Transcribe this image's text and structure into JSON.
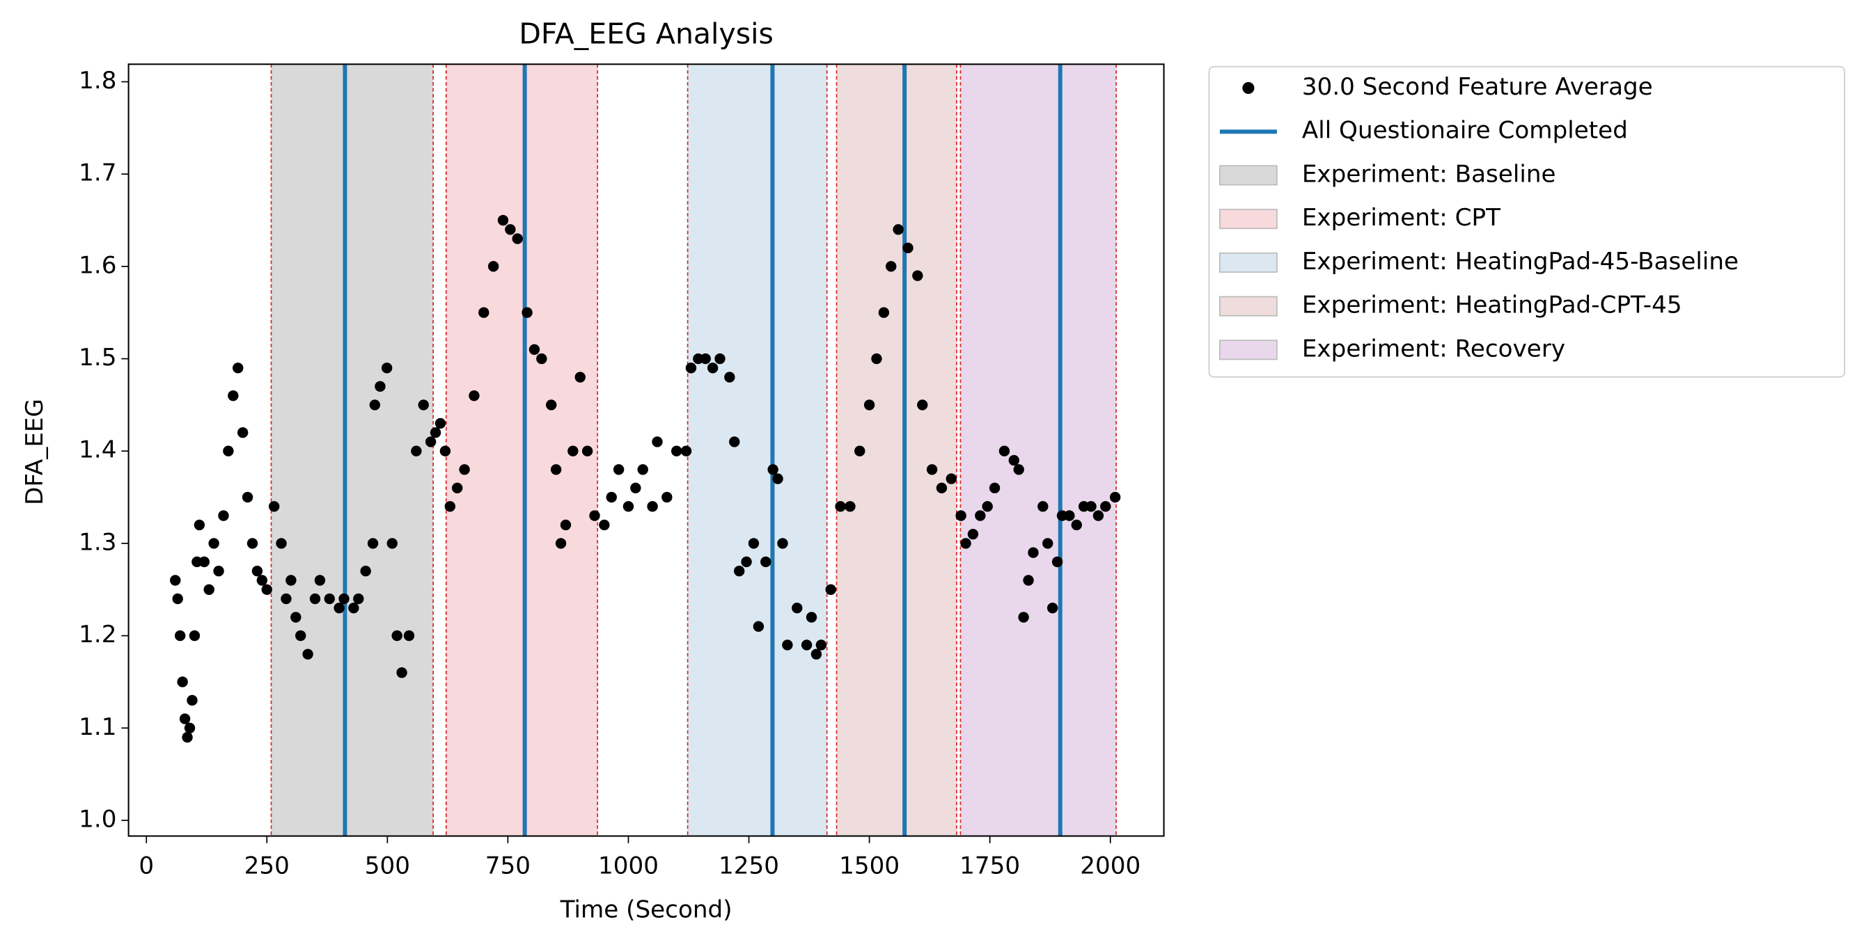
{
  "chart_data": {
    "type": "scatter",
    "title": "DFA_EEG Analysis",
    "xlabel": "Time (Second)",
    "ylabel": "DFA_EEG",
    "xlim": [
      -37,
      2111
    ],
    "ylim": [
      0.983,
      1.819
    ],
    "xticks": [
      0,
      250,
      500,
      750,
      1000,
      1250,
      1500,
      1750,
      2000
    ],
    "yticks": [
      {
        "value": 1,
        "label": "1.0"
      },
      1.1,
      1.2,
      1.3,
      1.4,
      1.5,
      1.6,
      1.7,
      1.8
    ],
    "series": [
      {
        "name": "30.0 Second Feature Average",
        "color": "#000000",
        "x": [
          60,
          65,
          70,
          75,
          80,
          85,
          90,
          95,
          100,
          105,
          110,
          120,
          130,
          140,
          150,
          160,
          170,
          180,
          190,
          200,
          210,
          220,
          230,
          240,
          250,
          265,
          280,
          290,
          300,
          310,
          320,
          335,
          350,
          360,
          380,
          400,
          410,
          430,
          440,
          455,
          470,
          474,
          485,
          499,
          510,
          520,
          530,
          545,
          560,
          575,
          590,
          600,
          610,
          620,
          630,
          645,
          660,
          680,
          700,
          720,
          740,
          755,
          770,
          790,
          805,
          820,
          840,
          850,
          860,
          870,
          885,
          900,
          915,
          930,
          950,
          965,
          980,
          1000,
          1015,
          1030,
          1050,
          1060,
          1080,
          1100,
          1120,
          1130,
          1145,
          1160,
          1175,
          1190,
          1210,
          1220,
          1230,
          1245,
          1260,
          1270,
          1285,
          1300,
          1310,
          1320,
          1330,
          1350,
          1370,
          1380,
          1390,
          1400,
          1420,
          1440,
          1460,
          1480,
          1500,
          1515,
          1530,
          1545,
          1560,
          1580,
          1600,
          1610,
          1630,
          1650,
          1670,
          1690,
          1700,
          1715,
          1730,
          1745,
          1760,
          1780,
          1800,
          1810,
          1820,
          1830,
          1840,
          1860,
          1870,
          1880,
          1890,
          1900,
          1915,
          1930,
          1945,
          1960,
          1975,
          1990,
          2010
        ],
        "values": [
          1.26,
          1.24,
          1.2,
          1.15,
          1.11,
          1.09,
          1.1,
          1.13,
          1.2,
          1.28,
          1.32,
          1.28,
          1.25,
          1.3,
          1.27,
          1.33,
          1.4,
          1.46,
          1.49,
          1.42,
          1.35,
          1.3,
          1.27,
          1.26,
          1.25,
          1.34,
          1.3,
          1.24,
          1.26,
          1.22,
          1.2,
          1.18,
          1.24,
          1.26,
          1.24,
          1.23,
          1.24,
          1.23,
          1.24,
          1.27,
          1.3,
          1.45,
          1.47,
          1.49,
          1.3,
          1.2,
          1.16,
          1.2,
          1.4,
          1.45,
          1.41,
          1.42,
          1.43,
          1.4,
          1.34,
          1.36,
          1.38,
          1.46,
          1.55,
          1.6,
          1.65,
          1.64,
          1.63,
          1.55,
          1.51,
          1.5,
          1.45,
          1.38,
          1.3,
          1.32,
          1.4,
          1.48,
          1.4,
          1.33,
          1.32,
          1.35,
          1.38,
          1.34,
          1.36,
          1.38,
          1.34,
          1.41,
          1.35,
          1.4,
          1.4,
          1.49,
          1.5,
          1.5,
          1.49,
          1.5,
          1.48,
          1.41,
          1.27,
          1.28,
          1.3,
          1.21,
          1.28,
          1.38,
          1.37,
          1.3,
          1.19,
          1.23,
          1.19,
          1.22,
          1.18,
          1.19,
          1.25,
          1.34,
          1.34,
          1.4,
          1.45,
          1.5,
          1.55,
          1.6,
          1.64,
          1.62,
          1.59,
          1.45,
          1.38,
          1.36,
          1.37,
          1.33,
          1.3,
          1.31,
          1.33,
          1.34,
          1.36,
          1.4,
          1.39,
          1.38,
          1.22,
          1.26,
          1.29,
          1.34,
          1.3,
          1.23,
          1.28,
          1.33,
          1.33,
          1.32,
          1.34,
          1.34,
          1.33,
          1.34,
          1.35
        ]
      }
    ],
    "vlines": {
      "name": "All Questionaire Completed",
      "color": "#1f77b4",
      "x": [
        412,
        785,
        1299,
        1573,
        1896
      ]
    },
    "spans": [
      {
        "name": "Experiment: Baseline",
        "color": "#d9d9d9",
        "start": 259,
        "end": 595
      },
      {
        "name": "Experiment: CPT",
        "color": "#f8d9dc",
        "start": 622,
        "end": 936
      },
      {
        "name": "Experiment: HeatingPad-45-Baseline",
        "color": "#dbe8f2",
        "start": 1123,
        "end": 1412
      },
      {
        "name": "Experiment: HeatingPad-CPT-45",
        "color": "#efdcdc",
        "start": 1432,
        "end": 1681
      },
      {
        "name": "Experiment: Recovery",
        "color": "#e9d8ec",
        "start": 1689,
        "end": 2012
      }
    ],
    "boundary_color": "#d62728"
  }
}
